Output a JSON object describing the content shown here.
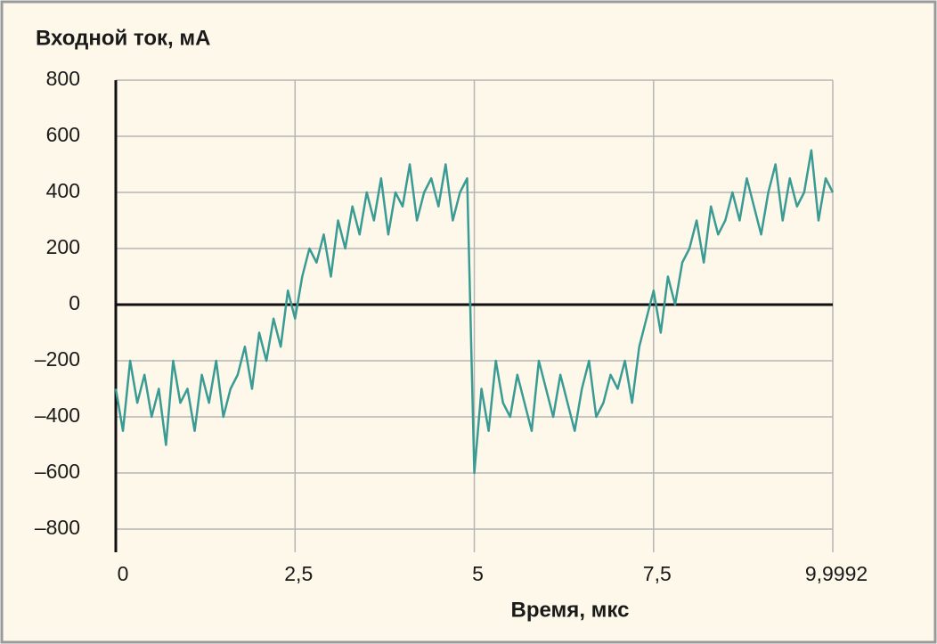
{
  "chart_data": {
    "type": "line",
    "ylabel": "Входной ток, мА",
    "xlabel": "Время, мкс",
    "xlim": [
      0,
      9.9992
    ],
    "xticks": [
      0,
      {
        "value": 2.5,
        "label": "2,5"
      },
      5,
      {
        "value": 7.5,
        "label": "7,5"
      },
      {
        "value": 9.9992,
        "label": "9,9992"
      }
    ],
    "ylim": [
      -800,
      800
    ],
    "yticks": [
      {
        "value": -800,
        "label": "–800"
      },
      {
        "value": -600,
        "label": "–600"
      },
      {
        "value": -400,
        "label": "–400"
      },
      {
        "value": -200,
        "label": "–200"
      },
      0,
      200,
      400,
      600,
      800
    ],
    "grid": true,
    "series": [
      {
        "color": "#3a9b94",
        "x": [
          0,
          0.1,
          0.2,
          0.3,
          0.4,
          0.5,
          0.6,
          0.7,
          0.8,
          0.9,
          1,
          1.1,
          1.2,
          1.3,
          1.4,
          1.5,
          1.6,
          1.7,
          1.8,
          1.9,
          2,
          2.1,
          2.2,
          2.3,
          2.4,
          2.5,
          2.6,
          2.7,
          2.8,
          2.9,
          3,
          3.1,
          3.2,
          3.3,
          3.4,
          3.5,
          3.6,
          3.7,
          3.8,
          3.9,
          4,
          4.1,
          4.2,
          4.3,
          4.4,
          4.5,
          4.6,
          4.7,
          4.8,
          4.9,
          5,
          5.1,
          5.2,
          5.3,
          5.4,
          5.5,
          5.6,
          5.7,
          5.8,
          5.9,
          6,
          6.1,
          6.2,
          6.3,
          6.4,
          6.5,
          6.6,
          6.7,
          6.8,
          6.9,
          7,
          7.1,
          7.2,
          7.3,
          7.4,
          7.5,
          7.6,
          7.7,
          7.8,
          7.9,
          8,
          8.1,
          8.2,
          8.3,
          8.4,
          8.5,
          8.6,
          8.7,
          8.8,
          8.9,
          9,
          9.1,
          9.2,
          9.3,
          9.4,
          9.5,
          9.6,
          9.7,
          9.8,
          9.9,
          9.9992
        ],
        "values": [
          -300,
          -450,
          -200,
          -350,
          -250,
          -400,
          -300,
          -500,
          -200,
          -350,
          -300,
          -450,
          -250,
          -350,
          -200,
          -400,
          -300,
          -250,
          -150,
          -300,
          -100,
          -200,
          -50,
          -150,
          50,
          -50,
          100,
          200,
          150,
          250,
          100,
          300,
          200,
          350,
          250,
          400,
          300,
          450,
          250,
          400,
          350,
          500,
          300,
          400,
          450,
          350,
          500,
          300,
          400,
          450,
          -600,
          -300,
          -450,
          -200,
          -350,
          -400,
          -250,
          -350,
          -450,
          -200,
          -300,
          -400,
          -250,
          -350,
          -450,
          -300,
          -200,
          -400,
          -350,
          -250,
          -300,
          -200,
          -350,
          -150,
          -50,
          50,
          -100,
          100,
          0,
          150,
          200,
          300,
          150,
          350,
          250,
          300,
          400,
          300,
          450,
          350,
          250,
          400,
          500,
          300,
          450,
          350,
          400,
          550,
          300,
          450,
          400
        ]
      }
    ]
  }
}
